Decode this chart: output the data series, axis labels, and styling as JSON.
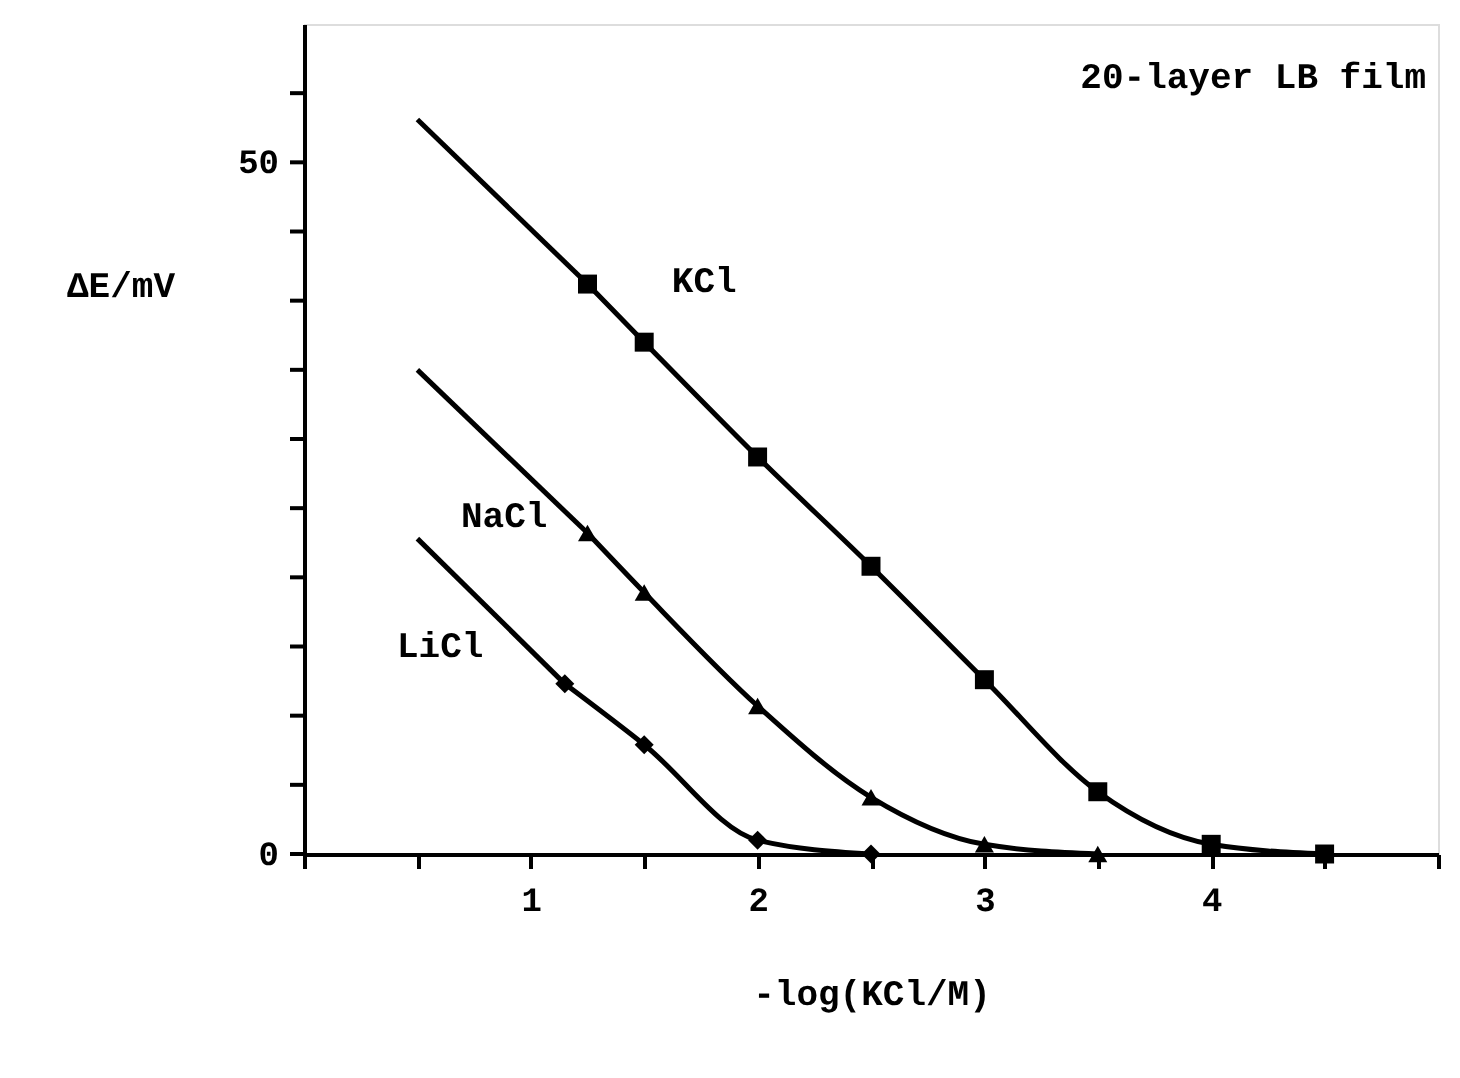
{
  "chart_data": {
    "type": "line",
    "xlabel": "-log(KCl/M)",
    "ylabel": "ΔE/mV",
    "xlim": [
      0,
      5
    ],
    "ylim": [
      0,
      60
    ],
    "xticks": [
      {
        "value": 0,
        "label": null
      },
      {
        "value": 0.5,
        "label": null
      },
      1,
      {
        "value": 1.5,
        "label": null
      },
      2,
      {
        "value": 2.5,
        "label": null
      },
      3,
      {
        "value": 3.5,
        "label": null
      },
      4,
      {
        "value": 4.5,
        "label": null
      },
      {
        "value": 5,
        "label": null
      }
    ],
    "yticks": [
      0,
      {
        "value": 5,
        "label": null
      },
      {
        "value": 10,
        "label": null
      },
      {
        "value": 15,
        "label": null
      },
      {
        "value": 20,
        "label": null
      },
      {
        "value": 25,
        "label": null
      },
      {
        "value": 30,
        "label": null
      },
      {
        "value": 35,
        "label": null
      },
      {
        "value": 40,
        "label": null
      },
      {
        "value": 45,
        "label": null
      },
      50,
      {
        "value": 55,
        "label": null
      }
    ],
    "grid": false,
    "line_style": "solid",
    "annotations": [
      "20-layer LB film"
    ],
    "series": [
      {
        "name": "KCl",
        "color": "#000000",
        "marker": "square",
        "x": [
          1.25,
          1.5,
          2,
          2.5,
          3,
          3.5,
          4,
          4.5
        ],
        "values": [
          41.2,
          37.0,
          28.7,
          20.8,
          12.6,
          4.5,
          0.7,
          0
        ]
      },
      {
        "name": "NaCl",
        "color": "#000000",
        "marker": "triangle",
        "x": [
          1.25,
          1.5,
          2,
          2.5,
          3,
          3.5
        ],
        "values": [
          23.2,
          18.9,
          10.7,
          4.1,
          0.7,
          0
        ]
      },
      {
        "name": "LiCl",
        "color": "#000000",
        "marker": "diamond",
        "x": [
          1.15,
          1.5,
          2,
          2.5
        ],
        "values": [
          12.3,
          7.9,
          1.0,
          0
        ]
      },
      {
        "color": "#000000",
        "marker": "none",
        "x": [
          0.5,
          1.25
        ],
        "values": [
          53.1,
          41.2
        ]
      },
      {
        "color": "#000000",
        "marker": "none",
        "x": [
          0.5,
          1.25
        ],
        "values": [
          35.0,
          23.2
        ]
      },
      {
        "color": "#000000",
        "marker": "none",
        "x": [
          0.5,
          1.15
        ],
        "values": [
          22.8,
          12.3
        ]
      }
    ]
  }
}
